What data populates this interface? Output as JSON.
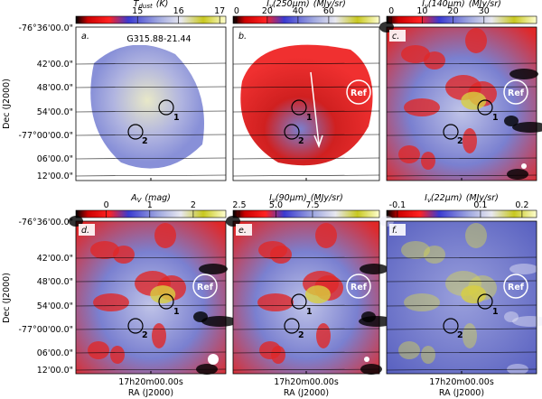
{
  "figure": {
    "dec_label": "Dec (J2000)",
    "ra_label": "RA (J2000)",
    "ra_tick": "17h20m00.00s",
    "dec_ticks": [
      "-76°36'00.0\"",
      "42'00.0\"",
      "48'00.0\"",
      "54'00.0\"",
      "-77°00'00.0\"",
      "06'00.0\"",
      "12'00.0\""
    ],
    "source_name": "G315.88-21.44",
    "marker_1": "1",
    "marker_2": "2",
    "ref_label": "Ref",
    "panels": [
      {
        "letter": "a.",
        "cbar": {
          "symbol": "T",
          "sub": "dust",
          "unit": "(K)",
          "lim": [
            13.5,
            17.15
          ],
          "ticks": [
            15,
            16,
            17
          ]
        }
      },
      {
        "letter": "b.",
        "cbar": {
          "symbol": "I",
          "sub": "ν",
          "arg": "(250μm)",
          "unit": "(MJy/sr)",
          "lim": [
            -2.3,
            93
          ],
          "ticks": [
            0,
            20,
            40,
            60
          ]
        }
      },
      {
        "letter": "c.",
        "cbar": {
          "symbol": "I",
          "sub": "ν",
          "arg": "(140μm)",
          "unit": "(MJy/sr)",
          "lim": [
            -1.5,
            47
          ],
          "ticks": [
            0,
            10,
            20,
            30
          ]
        }
      },
      {
        "letter": "d.",
        "cbar": {
          "symbol": "A",
          "sub": "V",
          "unit": "(mag)",
          "lim": [
            -0.7,
            2.75
          ],
          "ticks": [
            0,
            1,
            2
          ]
        }
      },
      {
        "letter": "e.",
        "cbar": {
          "symbol": "I",
          "sub": "ν",
          "arg": "(90μm)",
          "unit": "(MJy/sr)",
          "lim": [
            2.07,
            12.07
          ],
          "ticks": [
            {
              "value": 2.5,
              "label": "2.5"
            },
            {
              "value": 5,
              "label": "5.0"
            },
            {
              "value": 7.5,
              "label": "7.5"
            }
          ]
        }
      },
      {
        "letter": "f.",
        "cbar": {
          "symbol": "I",
          "sub": "ν",
          "arg": "(22μm)",
          "unit": "(MJy/sr)",
          "lim": [
            -0.126,
            0.235
          ],
          "ticks": [
            -0.1,
            0.1,
            0.2
          ]
        }
      }
    ]
  }
}
